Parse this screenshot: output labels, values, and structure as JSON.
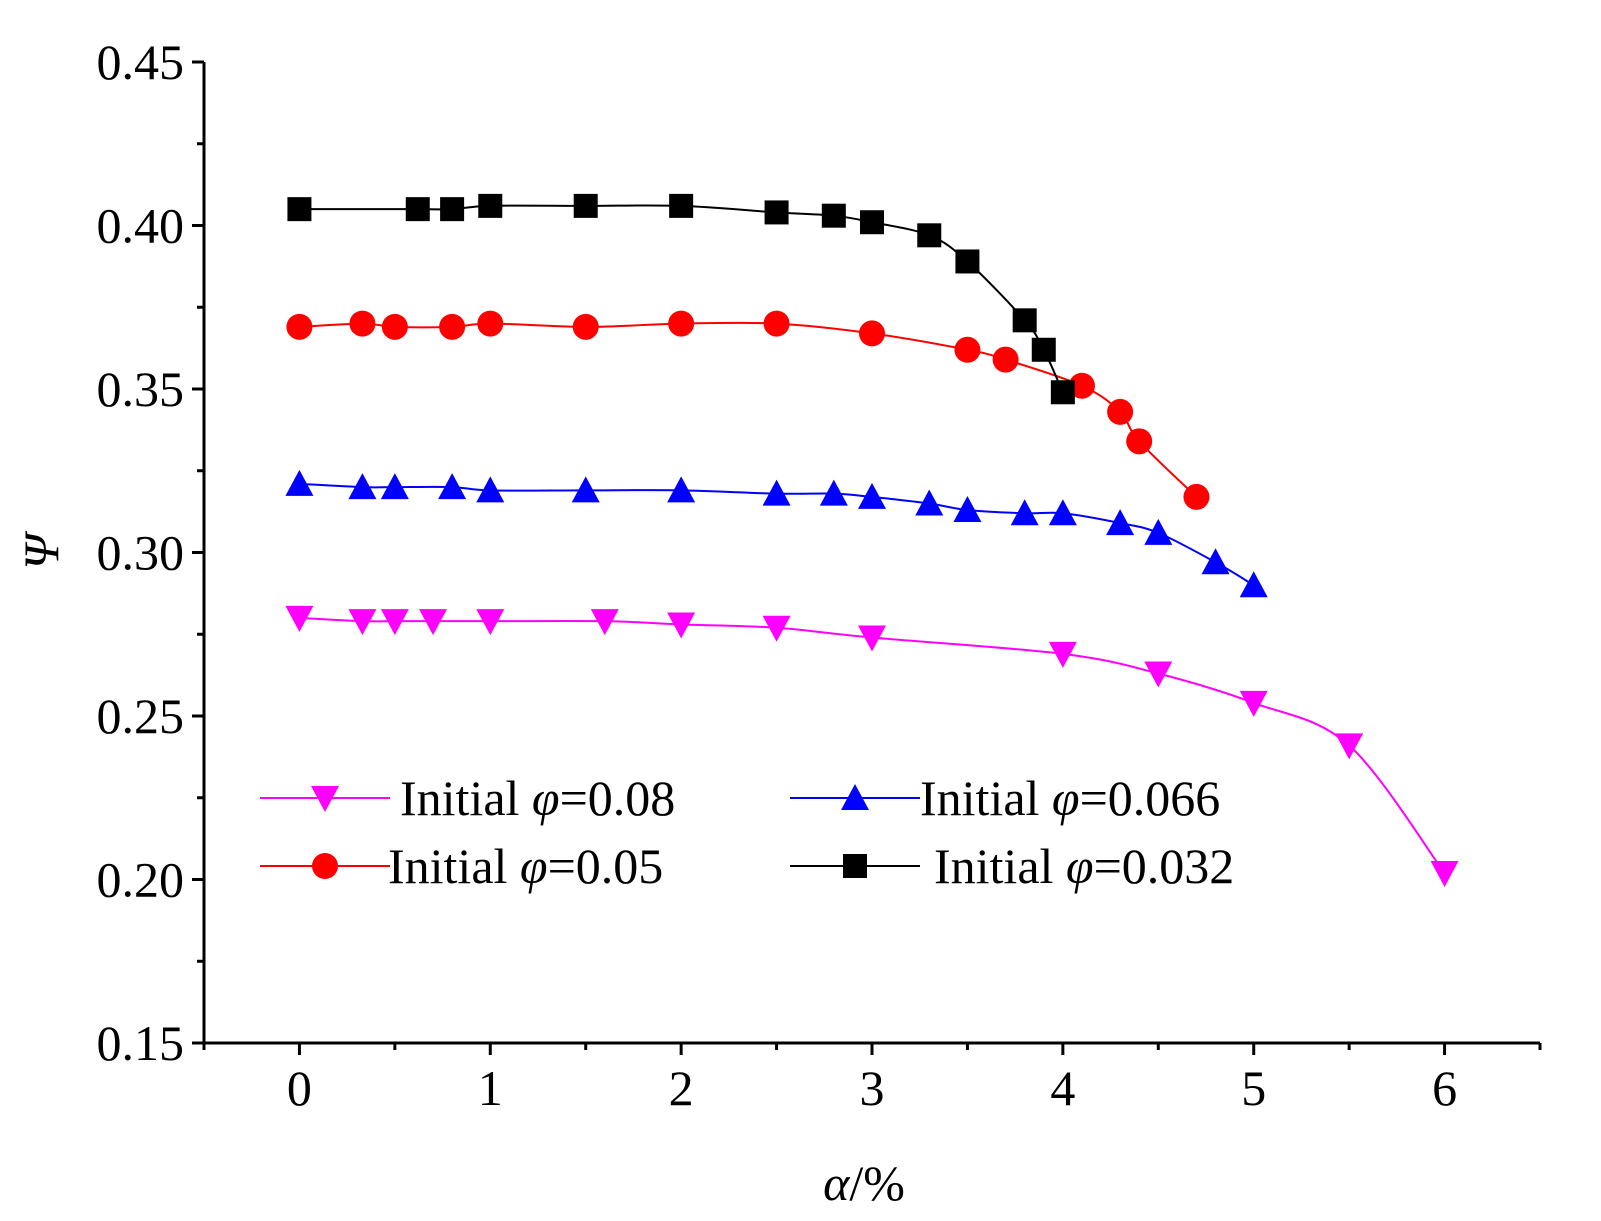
{
  "chart_data": {
    "type": "line",
    "title": "",
    "xlabel_var": "α",
    "xlabel_unit": "/%",
    "ylabel": "Ψ",
    "xlim": [
      -0.5,
      6.5
    ],
    "ylim": [
      0.15,
      0.45
    ],
    "x_ticks": [
      0,
      1,
      2,
      3,
      4,
      5,
      6
    ],
    "x_tick_labels": [
      "0",
      "1",
      "2",
      "3",
      "4",
      "5",
      "6"
    ],
    "y_ticks": [
      0.15,
      0.2,
      0.25,
      0.3,
      0.35,
      0.4,
      0.45
    ],
    "y_tick_labels": [
      "0.15",
      "0.20",
      "0.25",
      "0.30",
      "0.35",
      "0.40",
      "0.45"
    ],
    "grid": false,
    "legend_position": "lower-left-center",
    "legend_prefix": "Initial ",
    "legend_symbol": "φ",
    "series": [
      {
        "name": "Initial φ=0.08",
        "value_label": "=0.08",
        "color": "#ff00ff",
        "marker": "triangle-down",
        "x": [
          0,
          0.33,
          0.5,
          0.7,
          1.0,
          1.6,
          2.0,
          2.5,
          3.0,
          4.0,
          4.5,
          5.0,
          5.5,
          6.0
        ],
        "y": [
          0.28,
          0.279,
          0.279,
          0.279,
          0.279,
          0.279,
          0.278,
          0.277,
          0.274,
          0.269,
          0.263,
          0.254,
          0.241,
          0.202
        ]
      },
      {
        "name": "Initial φ=0.066",
        "value_label": "=0.066",
        "color": "#0000ff",
        "marker": "triangle-up",
        "x": [
          0,
          0.33,
          0.5,
          0.8,
          1.0,
          1.5,
          2.0,
          2.5,
          2.8,
          3.0,
          3.3,
          3.5,
          3.8,
          4.0,
          4.3,
          4.5,
          4.8,
          5.0
        ],
        "y": [
          0.321,
          0.32,
          0.32,
          0.32,
          0.319,
          0.319,
          0.319,
          0.318,
          0.318,
          0.317,
          0.315,
          0.313,
          0.312,
          0.312,
          0.309,
          0.306,
          0.297,
          0.29
        ]
      },
      {
        "name": "Initial φ=0.05",
        "value_label": "=0.05",
        "color": "#ff0000",
        "marker": "circle",
        "x": [
          0,
          0.33,
          0.5,
          0.8,
          1.0,
          1.5,
          2.0,
          2.5,
          3.0,
          3.5,
          3.7,
          4.1,
          4.3,
          4.4,
          4.7
        ],
        "y": [
          0.369,
          0.37,
          0.369,
          0.369,
          0.37,
          0.369,
          0.37,
          0.37,
          0.367,
          0.362,
          0.359,
          0.351,
          0.343,
          0.334,
          0.317
        ]
      },
      {
        "name": "Initial φ=0.032",
        "value_label": "=0.032",
        "color": "#000000",
        "marker": "square",
        "x": [
          0,
          0.62,
          0.8,
          1.0,
          1.5,
          2.0,
          2.5,
          2.8,
          3.0,
          3.3,
          3.5,
          3.8,
          3.9,
          4.0
        ],
        "y": [
          0.405,
          0.405,
          0.405,
          0.406,
          0.406,
          0.406,
          0.404,
          0.403,
          0.401,
          0.397,
          0.389,
          0.371,
          0.362,
          0.349
        ]
      }
    ]
  }
}
